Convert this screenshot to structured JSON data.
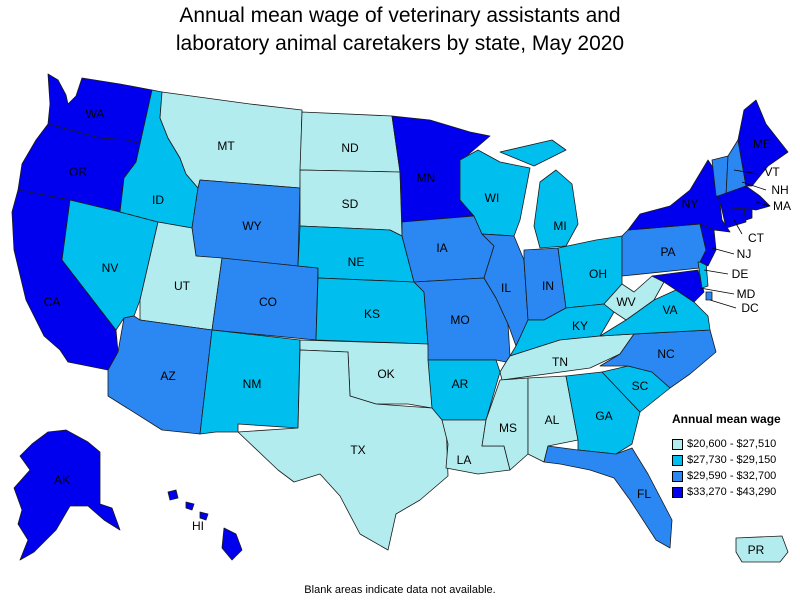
{
  "title_line1": "Annual mean wage of veterinary assistants and",
  "title_line2": "laboratory animal caretakers by state, May 2020",
  "legend": {
    "title": "Annual mean wage",
    "bins": [
      {
        "label": "$20,600 - $27,510",
        "color": "#b3ecee"
      },
      {
        "label": "$27,730 - $29,150",
        "color": "#00bfef"
      },
      {
        "label": "$29,590 - $32,700",
        "color": "#2b87f2"
      },
      {
        "label": "$33,270 - $43,290",
        "color": "#0000ee"
      }
    ]
  },
  "footnote": "Blank areas indicate data not available.",
  "states": {
    "WA": 3,
    "OR": 3,
    "CA": 3,
    "AK": 3,
    "HI": 3,
    "NV": 1,
    "ID": 1,
    "MT": 0,
    "WY": 2,
    "UT": 0,
    "CO": 2,
    "AZ": 2,
    "NM": 1,
    "ND": 0,
    "SD": 0,
    "NE": 1,
    "KS": 1,
    "OK": 0,
    "TX": 0,
    "MN": 3,
    "IA": 2,
    "MO": 2,
    "AR": 1,
    "LA": 0,
    "WI": 1,
    "IL": 2,
    "MI": 1,
    "IN": 2,
    "OH": 1,
    "KY": 1,
    "TN": 0,
    "MS": 0,
    "AL": 0,
    "GA": 1,
    "FL": 2,
    "SC": 1,
    "NC": 2,
    "VA": 1,
    "WV": 0,
    "PA": 2,
    "NY": 3,
    "ME": 3,
    "VT": 2,
    "NH": 2,
    "MA": 3,
    "CT": 3,
    "RI": 3,
    "NJ": 3,
    "DE": 1,
    "MD": 3,
    "DC": 2,
    "PR": 0
  },
  "labels": {
    "WA": "WA",
    "OR": "OR",
    "CA": "CA",
    "AK": "AK",
    "HI": "HI",
    "NV": "NV",
    "ID": "ID",
    "MT": "MT",
    "WY": "WY",
    "UT": "UT",
    "CO": "CO",
    "AZ": "AZ",
    "NM": "NM",
    "ND": "ND",
    "SD": "SD",
    "NE": "NE",
    "KS": "KS",
    "OK": "OK",
    "TX": "TX",
    "MN": "MN",
    "IA": "IA",
    "MO": "MO",
    "AR": "AR",
    "LA": "LA",
    "WI": "WI",
    "IL": "IL",
    "MI": "MI",
    "IN": "IN",
    "OH": "OH",
    "KY": "KY",
    "TN": "TN",
    "MS": "MS",
    "AL": "AL",
    "GA": "GA",
    "FL": "FL",
    "SC": "SC",
    "NC": "NC",
    "VA": "VA",
    "WV": "WV",
    "PA": "PA",
    "NY": "NY",
    "ME": "ME",
    "VT": "VT",
    "NH": "NH",
    "MA": "MA",
    "CT": "CT",
    "NJ": "NJ",
    "DE": "DE",
    "MD": "MD",
    "DC": "DC",
    "PR": "PR"
  }
}
